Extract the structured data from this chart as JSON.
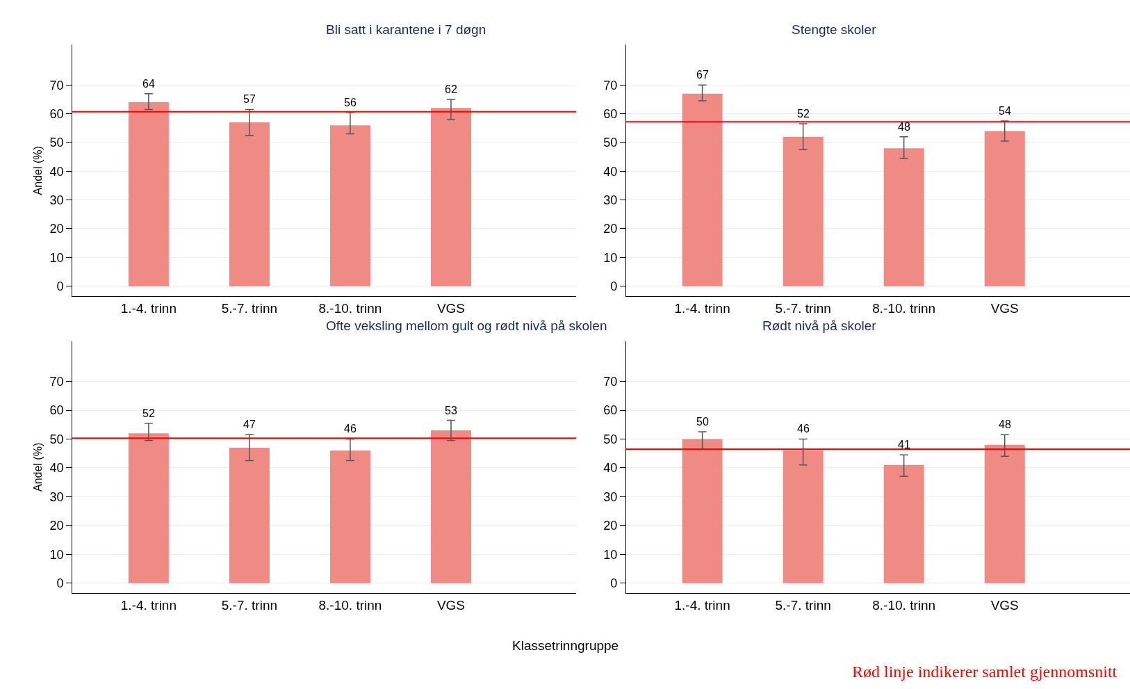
{
  "chart_data": [
    {
      "type": "bar",
      "title": "Bli satt i karantene i 7 døgn",
      "ylabel": "Andel (%)",
      "categories": [
        "1.-4. trinn",
        "5.-7. trinn",
        "8.-10. trinn",
        "VGS"
      ],
      "values": [
        64,
        57,
        56,
        62
      ],
      "errors": [
        [
          61.5,
          67
        ],
        [
          52.5,
          61.5
        ],
        [
          53,
          60.5
        ],
        [
          58,
          65
        ]
      ],
      "color": "#f08a84",
      "data_labels": true,
      "ylim": [
        -3.5,
        84
      ],
      "yticks": [
        0,
        10,
        20,
        30,
        40,
        50,
        60,
        70
      ],
      "grid": "y",
      "ref_lines": [
        {
          "axis": "y",
          "value": 60.7,
          "color": "#ff0000"
        }
      ]
    },
    {
      "type": "bar",
      "title": "Stengte skoler",
      "categories": [
        "1.-4. trinn",
        "5.-7. trinn",
        "8.-10. trinn",
        "VGS"
      ],
      "values": [
        67,
        52,
        48,
        54
      ],
      "errors": [
        [
          64.5,
          70
        ],
        [
          47.5,
          56.5
        ],
        [
          44.5,
          52
        ],
        [
          50.5,
          57.5
        ]
      ],
      "color": "#f08a84",
      "data_labels": true,
      "ylim": [
        -3.5,
        84
      ],
      "yticks": [
        0,
        10,
        20,
        30,
        40,
        50,
        60,
        70
      ],
      "grid": "y",
      "ref_lines": [
        {
          "axis": "y",
          "value": 57.2,
          "color": "#ff0000"
        }
      ]
    },
    {
      "type": "bar",
      "title": "Ofte veksling mellom gult og rødt nivå på skolen",
      "ylabel": "Andel (%)",
      "xlabel": "Klassetrinngruppe",
      "categories": [
        "1.-4. trinn",
        "5.-7. trinn",
        "8.-10. trinn",
        "VGS"
      ],
      "values": [
        52,
        47,
        46,
        53
      ],
      "errors": [
        [
          49.5,
          55.5
        ],
        [
          42.5,
          51.5
        ],
        [
          42.5,
          50
        ],
        [
          49.5,
          56.5
        ]
      ],
      "color": "#f08a84",
      "data_labels": true,
      "ylim": [
        -3.5,
        84
      ],
      "yticks": [
        0,
        10,
        20,
        30,
        40,
        50,
        60,
        70
      ],
      "grid": "y",
      "ref_lines": [
        {
          "axis": "y",
          "value": 50.3,
          "color": "#ff0000"
        }
      ]
    },
    {
      "type": "bar",
      "title": "Rødt nivå på skoler",
      "categories": [
        "1.-4. trinn",
        "5.-7. trinn",
        "8.-10. trinn",
        "VGS"
      ],
      "values": [
        50,
        46,
        41,
        48
      ],
      "errors": [
        [
          46.5,
          52.5
        ],
        [
          41,
          50
        ],
        [
          37,
          44.5
        ],
        [
          44,
          51.5
        ]
      ],
      "color": "#f08a84",
      "data_labels": true,
      "ylim": [
        -3.5,
        84
      ],
      "yticks": [
        0,
        10,
        20,
        30,
        40,
        50,
        60,
        70
      ],
      "grid": "y",
      "ref_lines": [
        {
          "axis": "y",
          "value": 46.5,
          "color": "#ff0000"
        }
      ],
      "annotations": [
        "Rød linje indikerer samlet gjennomsnitt"
      ]
    }
  ]
}
